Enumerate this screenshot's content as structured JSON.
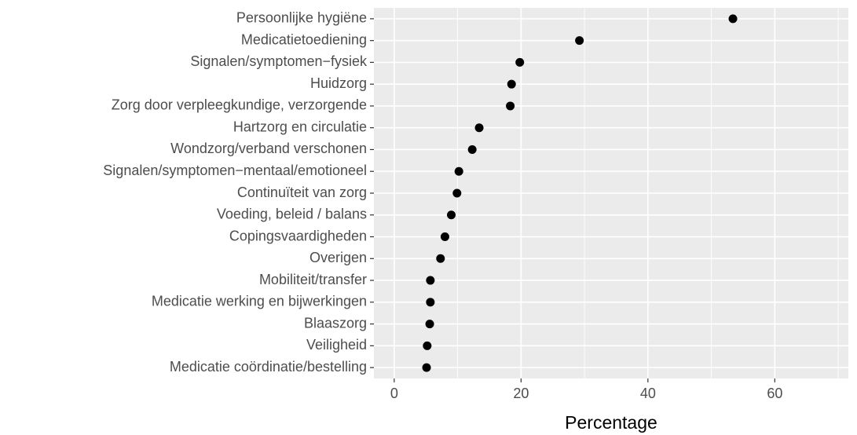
{
  "chart_data": {
    "type": "dot",
    "x_label": "Percentage",
    "categories": [
      "Persoonlijke hygiëne",
      "Medicatietoediening",
      "Signalen/symptomen−fysiek",
      "Huidzorg",
      "Zorg door verpleegkundige, verzorgende",
      "Hartzorg en circulatie",
      "Wondzorg/verband verschonen",
      "Signalen/symptomen−mentaal/emotioneel",
      "Continuïteit van zorg",
      "Voeding, beleid / balans",
      "Copingsvaardigheden",
      "Overigen",
      "Mobiliteit/transfer",
      "Medicatie werking en bijwerkingen",
      "Blaaszorg",
      "Veiligheid",
      "Medicatie coördinatie/bestelling"
    ],
    "values": [
      53.4,
      29.2,
      19.8,
      18.5,
      18.3,
      13.4,
      12.3,
      10.2,
      9.9,
      9.0,
      8.0,
      7.3,
      5.7,
      5.7,
      5.6,
      5.2,
      5.1
    ],
    "color": "#000000",
    "xlim": [
      -3.2,
      71.6
    ],
    "xticks": [
      0,
      20,
      40,
      60
    ],
    "grid": true
  }
}
